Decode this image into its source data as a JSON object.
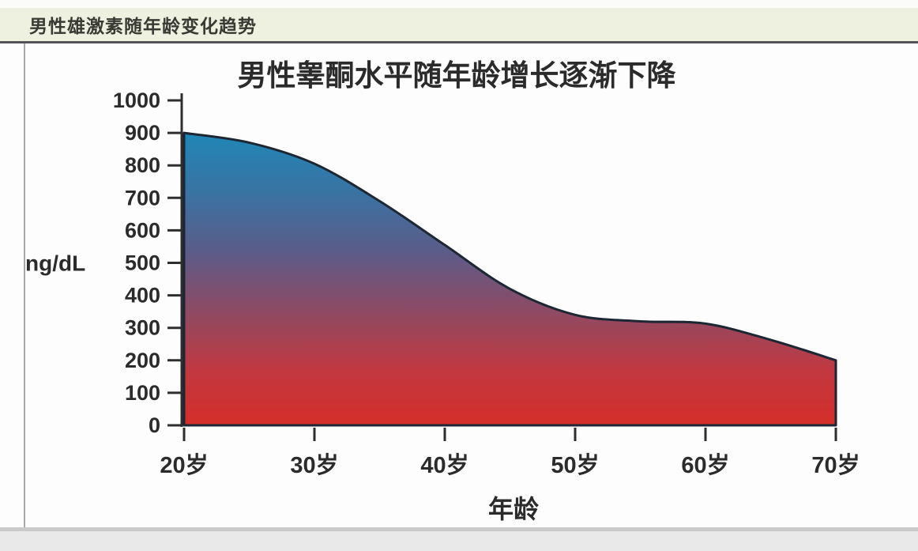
{
  "header": {
    "title": "男性雄激素随年龄变化趋势"
  },
  "chart_data": {
    "type": "area",
    "title": "男性睾酮水平随年龄增长逐渐下降",
    "xlabel": "年龄",
    "ylabel": "ng/dL",
    "x": [
      20,
      25,
      30,
      35,
      40,
      45,
      50,
      55,
      60,
      65,
      70
    ],
    "values": [
      900,
      870,
      805,
      690,
      555,
      420,
      340,
      320,
      313,
      263,
      200
    ],
    "xlim": [
      20,
      70
    ],
    "ylim": [
      0,
      1000
    ],
    "x_ticks": [
      20,
      30,
      40,
      50,
      60,
      70
    ],
    "x_tick_labels": [
      "20岁",
      "30岁",
      "40岁",
      "50岁",
      "60岁",
      "70岁"
    ],
    "y_ticks": [
      0,
      100,
      200,
      300,
      400,
      500,
      600,
      700,
      800,
      900,
      1000
    ],
    "y_tick_labels": [
      "0",
      "100",
      "200",
      "300",
      "400",
      "500",
      "600",
      "700",
      "800",
      "900",
      "1000"
    ],
    "grid": false,
    "legend": false,
    "gradient": [
      {
        "offset": 0.0,
        "color": "#1e88b8"
      },
      {
        "offset": 0.22,
        "color": "#3a72a2"
      },
      {
        "offset": 0.42,
        "color": "#5d5b88"
      },
      {
        "offset": 0.62,
        "color": "#8f4a63"
      },
      {
        "offset": 0.82,
        "color": "#c23840"
      },
      {
        "offset": 1.0,
        "color": "#d52e29"
      }
    ],
    "line_color": "#1d2733",
    "axis_color": "#2e2e2e",
    "text_color": "#2b2b2b"
  }
}
